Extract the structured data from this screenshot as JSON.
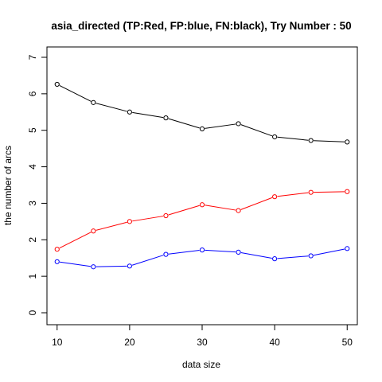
{
  "chart_data": {
    "type": "line",
    "title": "asia_directed  (TP:Red, FP:blue, FN:black),  Try Number :  50",
    "xlabel": "data size",
    "ylabel": "the number of arcs",
    "x": [
      10,
      15,
      20,
      25,
      30,
      35,
      40,
      45,
      50
    ],
    "xlim": [
      8.6,
      51.4
    ],
    "ylim": [
      0,
      7
    ],
    "xticks": [
      10,
      20,
      30,
      40,
      50
    ],
    "yticks": [
      0,
      1,
      2,
      3,
      4,
      5,
      6,
      7
    ],
    "grid": false,
    "legend": "none",
    "series": [
      {
        "key": "tp",
        "color": "#ff0000",
        "values": [
          1.74,
          2.24,
          2.5,
          2.66,
          2.96,
          2.8,
          3.18,
          3.3,
          3.32
        ]
      },
      {
        "key": "fp",
        "color": "#0000ff",
        "values": [
          1.4,
          1.26,
          1.28,
          1.6,
          1.72,
          1.66,
          1.48,
          1.56,
          1.76
        ]
      },
      {
        "key": "fn",
        "color": "#000000",
        "values": [
          6.26,
          5.76,
          5.5,
          5.34,
          5.04,
          5.18,
          4.82,
          4.72,
          4.68
        ]
      }
    ]
  }
}
